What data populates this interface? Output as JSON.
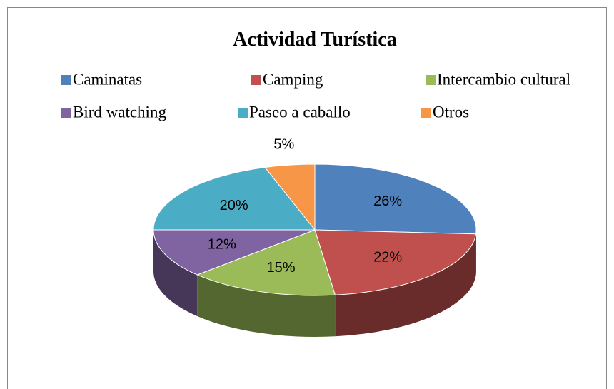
{
  "chart_data": {
    "type": "pie3d",
    "title": "Actividad Turística",
    "categories": [
      "Caminatas",
      "Camping",
      "Intercambio cultural",
      "Bird watching",
      "Paseo a caballo",
      "Otros"
    ],
    "values": [
      26,
      22,
      15,
      12,
      20,
      5
    ],
    "value_labels": [
      "26%",
      "22%",
      "15%",
      "12%",
      "20%",
      "5%"
    ],
    "colors": [
      "#4f81bd",
      "#c0504d",
      "#9bbb59",
      "#8064a2",
      "#4bacc6",
      "#f79646"
    ],
    "legend": "top"
  }
}
